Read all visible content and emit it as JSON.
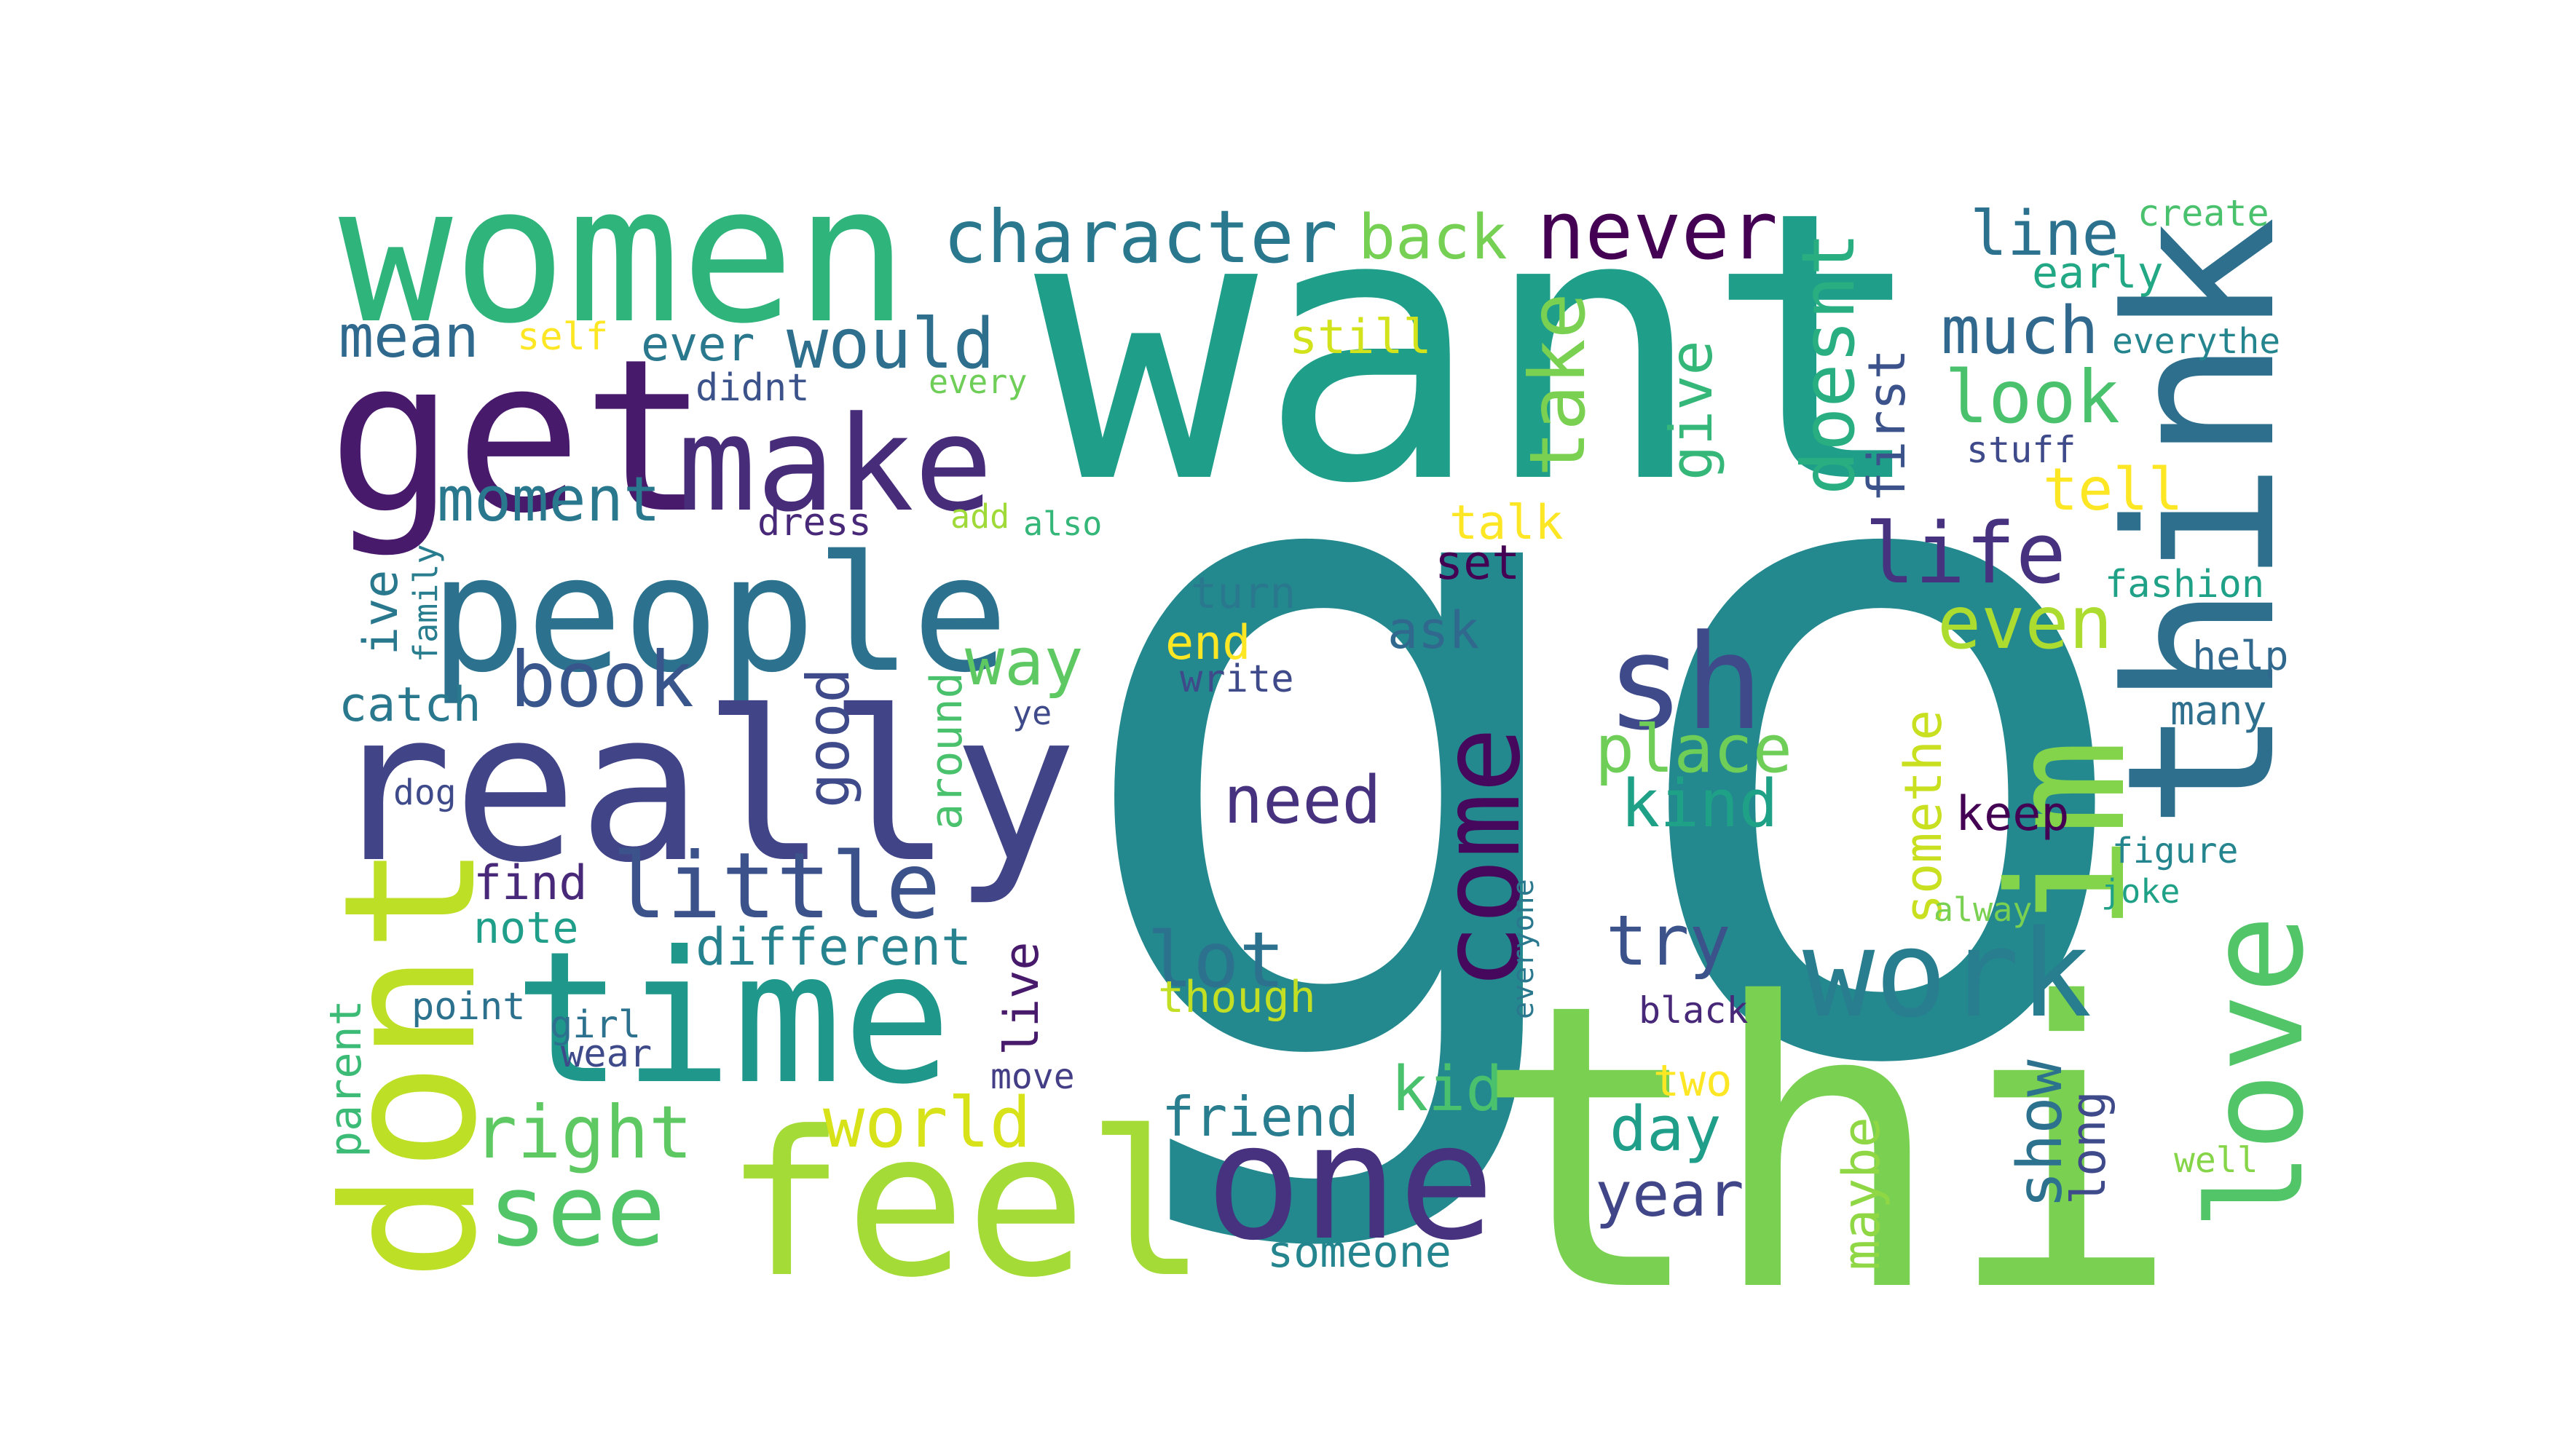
{
  "words": [
    {
      "text": "go",
      "color": "#23898e"
    },
    {
      "text": "want",
      "color": "#1f9e89"
    },
    {
      "text": "thi",
      "color": "#7ad151"
    },
    {
      "text": "women",
      "color": "#2fb47c"
    },
    {
      "text": "get",
      "color": "#481a6c"
    },
    {
      "text": "make",
      "color": "#472c7a"
    },
    {
      "text": "people",
      "color": "#2c728e"
    },
    {
      "text": "really",
      "color": "#414487"
    },
    {
      "text": "time",
      "color": "#1f978b"
    },
    {
      "text": "dont",
      "color": "#bddf26"
    },
    {
      "text": "feel",
      "color": "#a5db36"
    },
    {
      "text": "one",
      "color": "#46327e"
    },
    {
      "text": "think",
      "color": "#2e6f8e"
    },
    {
      "text": "im",
      "color": "#84d44b"
    },
    {
      "text": "love",
      "color": "#52c569"
    },
    {
      "text": "sh",
      "color": "#3e4a89"
    },
    {
      "text": "come",
      "color": "#46085c"
    },
    {
      "text": "work",
      "color": "#287d8e"
    },
    {
      "text": "character",
      "color": "#2a788e"
    },
    {
      "text": "back",
      "color": "#75d054"
    },
    {
      "text": "never",
      "color": "#440154"
    },
    {
      "text": "take",
      "color": "#7ad151"
    },
    {
      "text": "doesnt",
      "color": "#28ae80"
    },
    {
      "text": "first",
      "color": "#3b528b"
    },
    {
      "text": "line",
      "color": "#2c728e"
    },
    {
      "text": "create",
      "color": "#4ac16d"
    },
    {
      "text": "early",
      "color": "#22a884"
    },
    {
      "text": "much",
      "color": "#31688e"
    },
    {
      "text": "everythe",
      "color": "#25858e"
    },
    {
      "text": "look",
      "color": "#4ac16d"
    },
    {
      "text": "stuff",
      "color": "#3e4a89"
    },
    {
      "text": "tell",
      "color": "#fde725"
    },
    {
      "text": "give",
      "color": "#35b779"
    },
    {
      "text": "mean",
      "color": "#30698e"
    },
    {
      "text": "self",
      "color": "#fde725"
    },
    {
      "text": "ever",
      "color": "#2a788e"
    },
    {
      "text": "would",
      "color": "#2e6f8e"
    },
    {
      "text": "still",
      "color": "#d2e21b"
    },
    {
      "text": "didnt",
      "color": "#3b528b"
    },
    {
      "text": "every",
      "color": "#6ece58"
    },
    {
      "text": "moment",
      "color": "#2a788e"
    },
    {
      "text": "dress",
      "color": "#482878"
    },
    {
      "text": "add",
      "color": "#a0da39"
    },
    {
      "text": "also",
      "color": "#35b779"
    },
    {
      "text": "talk",
      "color": "#fde725"
    },
    {
      "text": "set",
      "color": "#440154"
    },
    {
      "text": "life",
      "color": "#46327e"
    },
    {
      "text": "even",
      "color": "#addc30"
    },
    {
      "text": "fashion",
      "color": "#1fa187"
    },
    {
      "text": "help",
      "color": "#31688e"
    },
    {
      "text": "many",
      "color": "#2e6f8e"
    },
    {
      "text": "family",
      "color": "#287d8e"
    },
    {
      "text": "ive",
      "color": "#2a788e"
    },
    {
      "text": "book",
      "color": "#39568c"
    },
    {
      "text": "turn",
      "color": "#2a788e"
    },
    {
      "text": "end",
      "color": "#fde725"
    },
    {
      "text": "write",
      "color": "#3e4a89"
    },
    {
      "text": "way",
      "color": "#5ec962"
    },
    {
      "text": "ask",
      "color": "#31688e"
    },
    {
      "text": "place",
      "color": "#6ece58"
    },
    {
      "text": "kind",
      "color": "#1fa187"
    },
    {
      "text": "catch",
      "color": "#2a788e"
    },
    {
      "text": "ye",
      "color": "#3e4a89"
    },
    {
      "text": "good",
      "color": "#3e4a89"
    },
    {
      "text": "around",
      "color": "#4ac16d"
    },
    {
      "text": "need",
      "color": "#46327e"
    },
    {
      "text": "somethe",
      "color": "#c8e020"
    },
    {
      "text": "keep",
      "color": "#440154"
    },
    {
      "text": "dog",
      "color": "#3e4a89"
    },
    {
      "text": "little",
      "color": "#3b528b"
    },
    {
      "text": "find",
      "color": "#482878"
    },
    {
      "text": "note",
      "color": "#1f9e89"
    },
    {
      "text": "different",
      "color": "#26828e"
    },
    {
      "text": "live",
      "color": "#481a6c"
    },
    {
      "text": "lot",
      "color": "#2c728e"
    },
    {
      "text": "try",
      "color": "#3b528b"
    },
    {
      "text": "figure",
      "color": "#25858e"
    },
    {
      "text": "joke",
      "color": "#1fa187"
    },
    {
      "text": "alway",
      "color": "#7ad151"
    },
    {
      "text": "everyone",
      "color": "#2a788e"
    },
    {
      "text": "though",
      "color": "#c2df23"
    },
    {
      "text": "parent",
      "color": "#3bbb75"
    },
    {
      "text": "point",
      "color": "#2c728e"
    },
    {
      "text": "girl",
      "color": "#2c728e"
    },
    {
      "text": "wear",
      "color": "#3e4a89"
    },
    {
      "text": "black",
      "color": "#482878"
    },
    {
      "text": "move",
      "color": "#433e85"
    },
    {
      "text": "show",
      "color": "#2c728e"
    },
    {
      "text": "long",
      "color": "#3e4a89"
    },
    {
      "text": "two",
      "color": "#fde725"
    },
    {
      "text": "kid",
      "color": "#4ac16d"
    },
    {
      "text": "right",
      "color": "#5ec962"
    },
    {
      "text": "world",
      "color": "#d8e219"
    },
    {
      "text": "friend",
      "color": "#287d8e"
    },
    {
      "text": "day",
      "color": "#1f9e89"
    },
    {
      "text": "see",
      "color": "#52c569"
    },
    {
      "text": "maybe",
      "color": "#8fd744"
    },
    {
      "text": "year",
      "color": "#404688"
    },
    {
      "text": "well",
      "color": "#86d549"
    },
    {
      "text": "someone",
      "color": "#25858e"
    }
  ]
}
